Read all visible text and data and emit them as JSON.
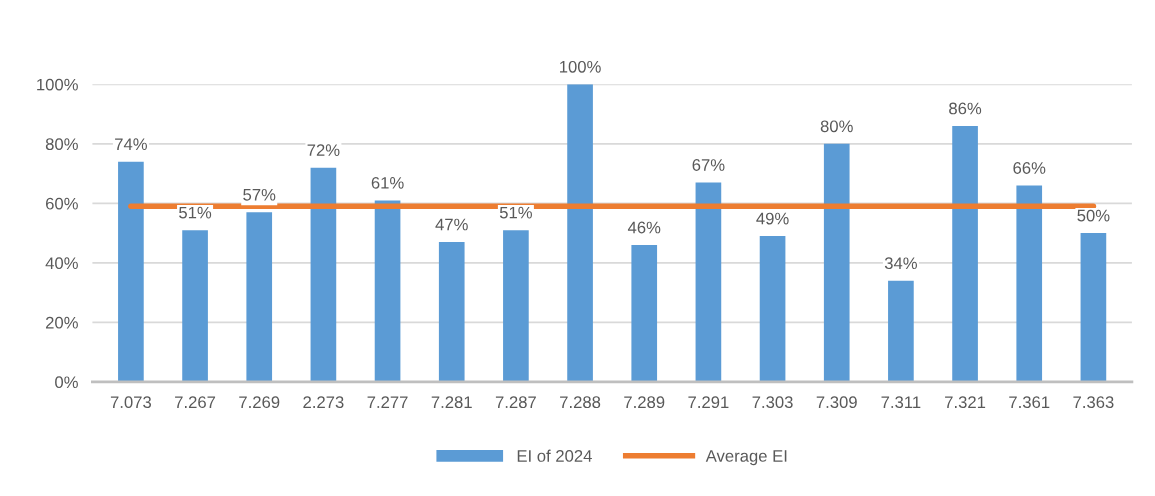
{
  "chart_data": {
    "type": "bar",
    "categories": [
      "7.073",
      "7.267",
      "7.269",
      "2.273",
      "7.277",
      "7.281",
      "7.287",
      "7.288",
      "7.289",
      "7.291",
      "7.303",
      "7.309",
      "7.311",
      "7.321",
      "7.361",
      "7.363"
    ],
    "series": [
      {
        "name": "EI of 2024",
        "color": "#5b9bd5",
        "values": [
          74,
          51,
          57,
          72,
          61,
          47,
          51,
          100,
          46,
          67,
          49,
          80,
          34,
          86,
          66,
          50
        ],
        "value_labels": [
          "74%",
          "51%",
          "57%",
          "72%",
          "61%",
          "47%",
          "51%",
          "100%",
          "46%",
          "67%",
          "49%",
          "80%",
          "34%",
          "86%",
          "66%",
          "50%"
        ]
      },
      {
        "name": "Average EI",
        "type": "line",
        "color": "#ed7d31",
        "values": [
          59,
          59,
          59,
          59,
          59,
          59,
          59,
          59,
          59,
          59,
          59,
          59,
          59,
          59,
          59,
          59
        ]
      }
    ],
    "ylim": [
      0,
      100
    ],
    "yticks": [
      {
        "value": 0,
        "label": "0%"
      },
      {
        "value": 20,
        "label": "20%"
      },
      {
        "value": 40,
        "label": "40%"
      },
      {
        "value": 60,
        "label": "60%"
      },
      {
        "value": 80,
        "label": "80%"
      },
      {
        "value": 100,
        "label": "100%"
      }
    ],
    "grid": "y",
    "legend": "bottom",
    "marker": "none"
  }
}
